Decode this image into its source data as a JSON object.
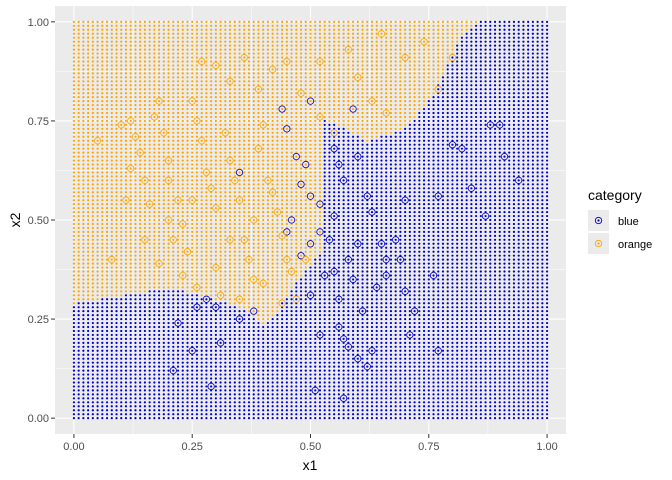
{
  "chart_data": {
    "type": "scatter",
    "xlabel": "x1",
    "ylabel": "x2",
    "xlim": [
      -0.04,
      1.04
    ],
    "ylim": [
      -0.04,
      1.04
    ],
    "x_ticks": [
      "0.00",
      "0.25",
      "0.50",
      "0.75",
      "1.00"
    ],
    "y_ticks": [
      "0.00",
      "0.25",
      "0.50",
      "0.75",
      "1.00"
    ],
    "grid": true,
    "legend": {
      "title": "category",
      "position": "right",
      "entries": [
        {
          "name": "blue",
          "color": "#0000cd"
        },
        {
          "name": "orange",
          "color": "#ffa500"
        }
      ]
    },
    "decision_grid": {
      "spacing": 0.01,
      "range": [
        0,
        1
      ],
      "boundary": [
        [
          0.0,
          0.29
        ],
        [
          0.1,
          0.31
        ],
        [
          0.15,
          0.32
        ],
        [
          0.2,
          0.33
        ],
        [
          0.3,
          0.3
        ],
        [
          0.35,
          0.28
        ],
        [
          0.4,
          0.24
        ],
        [
          0.43,
          0.27
        ],
        [
          0.45,
          0.31
        ],
        [
          0.48,
          0.36
        ],
        [
          0.52,
          0.42
        ],
        [
          0.45,
          0.52
        ],
        [
          0.44,
          0.62
        ],
        [
          0.46,
          0.72
        ],
        [
          0.5,
          0.77
        ],
        [
          0.56,
          0.74
        ],
        [
          0.62,
          0.7
        ],
        [
          0.7,
          0.73
        ],
        [
          0.76,
          0.82
        ],
        [
          0.8,
          0.92
        ],
        [
          0.82,
          0.96
        ],
        [
          0.85,
          1.0
        ]
      ]
    },
    "series": [
      {
        "name": "blue",
        "color": "#0000cd",
        "points": [
          [
            0.21,
            0.12
          ],
          [
            0.25,
            0.17
          ],
          [
            0.29,
            0.08
          ],
          [
            0.31,
            0.19
          ],
          [
            0.35,
            0.25
          ],
          [
            0.38,
            0.27
          ],
          [
            0.22,
            0.24
          ],
          [
            0.44,
            0.78
          ],
          [
            0.5,
            0.8
          ],
          [
            0.45,
            0.73
          ],
          [
            0.47,
            0.66
          ],
          [
            0.48,
            0.59
          ],
          [
            0.5,
            0.56
          ],
          [
            0.52,
            0.54
          ],
          [
            0.5,
            0.44
          ],
          [
            0.52,
            0.47
          ],
          [
            0.54,
            0.45
          ],
          [
            0.46,
            0.5
          ],
          [
            0.55,
            0.68
          ],
          [
            0.57,
            0.6
          ],
          [
            0.56,
            0.64
          ],
          [
            0.6,
            0.66
          ],
          [
            0.62,
            0.56
          ],
          [
            0.63,
            0.52
          ],
          [
            0.65,
            0.44
          ],
          [
            0.68,
            0.45
          ],
          [
            0.69,
            0.4
          ],
          [
            0.66,
            0.36
          ],
          [
            0.7,
            0.32
          ],
          [
            0.72,
            0.27
          ],
          [
            0.56,
            0.23
          ],
          [
            0.57,
            0.2
          ],
          [
            0.58,
            0.18
          ],
          [
            0.6,
            0.15
          ],
          [
            0.62,
            0.13
          ],
          [
            0.63,
            0.17
          ],
          [
            0.52,
            0.21
          ],
          [
            0.51,
            0.07
          ],
          [
            0.57,
            0.05
          ],
          [
            0.5,
            0.31
          ],
          [
            0.56,
            0.3
          ],
          [
            0.61,
            0.27
          ],
          [
            0.59,
            0.35
          ],
          [
            0.53,
            0.36
          ],
          [
            0.55,
            0.37
          ],
          [
            0.64,
            0.33
          ],
          [
            0.66,
            0.4
          ],
          [
            0.7,
            0.55
          ],
          [
            0.76,
            0.36
          ],
          [
            0.77,
            0.56
          ],
          [
            0.8,
            0.69
          ],
          [
            0.82,
            0.68
          ],
          [
            0.84,
            0.58
          ],
          [
            0.88,
            0.74
          ],
          [
            0.9,
            0.74
          ],
          [
            0.91,
            0.66
          ],
          [
            0.94,
            0.6
          ],
          [
            0.77,
            0.17
          ],
          [
            0.59,
            0.78
          ],
          [
            0.49,
            0.64
          ],
          [
            0.6,
            0.44
          ],
          [
            0.58,
            0.4
          ],
          [
            0.45,
            0.47
          ],
          [
            0.55,
            0.51
          ],
          [
            0.48,
            0.41
          ],
          [
            0.71,
            0.21
          ],
          [
            0.28,
            0.3
          ],
          [
            0.3,
            0.28
          ],
          [
            0.26,
            0.28
          ],
          [
            0.87,
            0.51
          ],
          [
            0.35,
            0.62
          ]
        ]
      },
      {
        "name": "orange",
        "color": "#ffa500",
        "points": [
          [
            0.05,
            0.7
          ],
          [
            0.1,
            0.74
          ],
          [
            0.12,
            0.63
          ],
          [
            0.12,
            0.75
          ],
          [
            0.13,
            0.71
          ],
          [
            0.14,
            0.67
          ],
          [
            0.15,
            0.6
          ],
          [
            0.16,
            0.54
          ],
          [
            0.17,
            0.76
          ],
          [
            0.18,
            0.8
          ],
          [
            0.19,
            0.72
          ],
          [
            0.2,
            0.65
          ],
          [
            0.2,
            0.5
          ],
          [
            0.21,
            0.45
          ],
          [
            0.22,
            0.55
          ],
          [
            0.23,
            0.49
          ],
          [
            0.24,
            0.42
          ],
          [
            0.25,
            0.8
          ],
          [
            0.26,
            0.75
          ],
          [
            0.27,
            0.7
          ],
          [
            0.28,
            0.62
          ],
          [
            0.29,
            0.58
          ],
          [
            0.3,
            0.53
          ],
          [
            0.3,
            0.38
          ],
          [
            0.31,
            0.31
          ],
          [
            0.32,
            0.72
          ],
          [
            0.33,
            0.65
          ],
          [
            0.34,
            0.6
          ],
          [
            0.35,
            0.55
          ],
          [
            0.36,
            0.45
          ],
          [
            0.37,
            0.4
          ],
          [
            0.38,
            0.35
          ],
          [
            0.39,
            0.68
          ],
          [
            0.4,
            0.74
          ],
          [
            0.41,
            0.6
          ],
          [
            0.42,
            0.57
          ],
          [
            0.43,
            0.52
          ],
          [
            0.44,
            0.46
          ],
          [
            0.45,
            0.4
          ],
          [
            0.46,
            0.37
          ],
          [
            0.27,
            0.9
          ],
          [
            0.3,
            0.89
          ],
          [
            0.33,
            0.85
          ],
          [
            0.36,
            0.91
          ],
          [
            0.39,
            0.83
          ],
          [
            0.42,
            0.88
          ],
          [
            0.45,
            0.9
          ],
          [
            0.48,
            0.82
          ],
          [
            0.52,
            0.76
          ],
          [
            0.55,
            0.72
          ],
          [
            0.6,
            0.86
          ],
          [
            0.63,
            0.8
          ],
          [
            0.66,
            0.77
          ],
          [
            0.7,
            0.91
          ],
          [
            0.74,
            0.95
          ],
          [
            0.77,
            0.83
          ],
          [
            0.8,
            0.91
          ],
          [
            0.08,
            0.4
          ],
          [
            0.11,
            0.55
          ],
          [
            0.15,
            0.45
          ],
          [
            0.18,
            0.39
          ],
          [
            0.23,
            0.36
          ],
          [
            0.26,
            0.33
          ],
          [
            0.33,
            0.45
          ],
          [
            0.38,
            0.5
          ],
          [
            0.4,
            0.34
          ],
          [
            0.44,
            0.29
          ],
          [
            0.47,
            0.3
          ],
          [
            0.35,
            0.3
          ],
          [
            0.2,
            0.6
          ],
          [
            0.25,
            0.55
          ],
          [
            0.49,
            0.4
          ],
          [
            0.52,
            0.9
          ],
          [
            0.58,
            0.93
          ],
          [
            0.65,
            0.97
          ]
        ]
      }
    ]
  }
}
